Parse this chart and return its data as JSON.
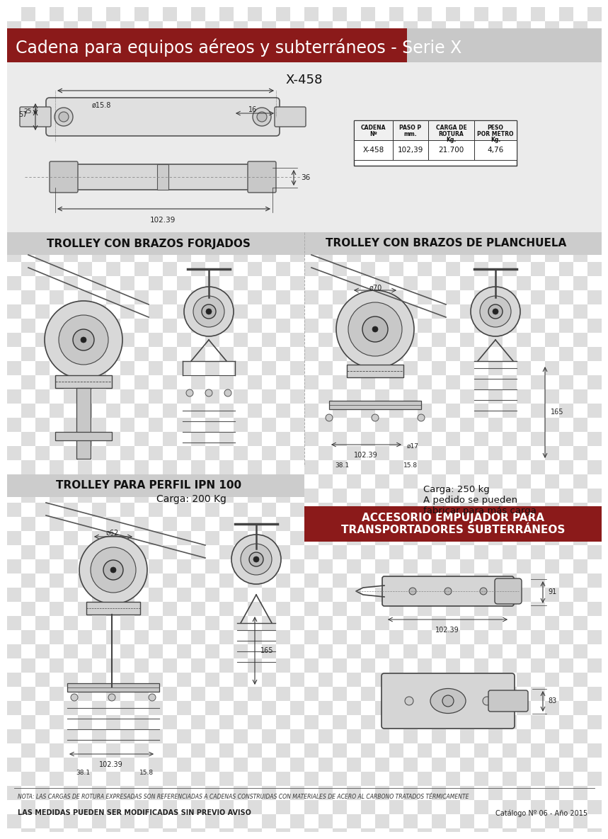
{
  "title": "Cadena para equipos aéreos y subterráneos - Serie X",
  "title_bg_color": "#8B1A1A",
  "title_text_color": "#FFFFFF",
  "title_right_bg": "#C8C8C8",
  "bg_color": "#DEDEDE",
  "panel_bg": "#E8E8E8",
  "section_label_bg": "#CCCCCC",
  "main_bg": "#F0F0F0",
  "checker_light": "#FFFFFF",
  "checker_dark": "#DDDDDD",
  "model_label": "X-458",
  "table_headers": [
    "CADENA\nNº",
    "PASO P\nmm.",
    "CARGA DE\nROTURA\nKg.",
    "PESO\nPOR METRO\nKg."
  ],
  "table_row": [
    "X-458",
    "102,39",
    "21.700",
    "4,76"
  ],
  "section1_title": "TROLLEY CON BRAZOS FORJADOS",
  "section2_title": "TROLLEY CON BRAZOS DE PLANCHUELA",
  "section3_title": "TROLLEY PARA PERFIL IPN 100",
  "section3_load": "Carga: 200 Kg",
  "section4_title": "ACCESORIO EMPUJADOR PARA\nTRANSPORTADORES SUBTERRÁNEOS",
  "section4_load": "Carga: 250 kg\nA pedido se pueden\nfabricar para más carga",
  "footer_note": "NOTA: LAS CARGAS DE ROTURA EXPRESADAS SON REFERENCIADAS A CADENAS CONSTRUIDAS CON MATERIALES DE ACERO AL CARBONO TRATADOS TÉRMICAMENTE",
  "footer_left": "LAS MEDIDAS PUEDEN SER MODIFICADAS SIN PREVIO AVISO",
  "footer_right": "Catálogo Nº 06 - Año 2015",
  "dim_labels": {
    "x458_top": [
      "ø15.8",
      "57",
      "25.4",
      "16"
    ],
    "x458_bottom": [
      "36",
      "102.39"
    ],
    "trolley2_dims": [
      "ø70",
      "165",
      "102.39",
      "ø17",
      "38.1",
      "15.8"
    ],
    "trolley3_dims": [
      "ø62",
      "165",
      "102.39",
      "38.1",
      "15.8"
    ],
    "acc_dims": [
      "91",
      "102.39",
      "83"
    ]
  }
}
